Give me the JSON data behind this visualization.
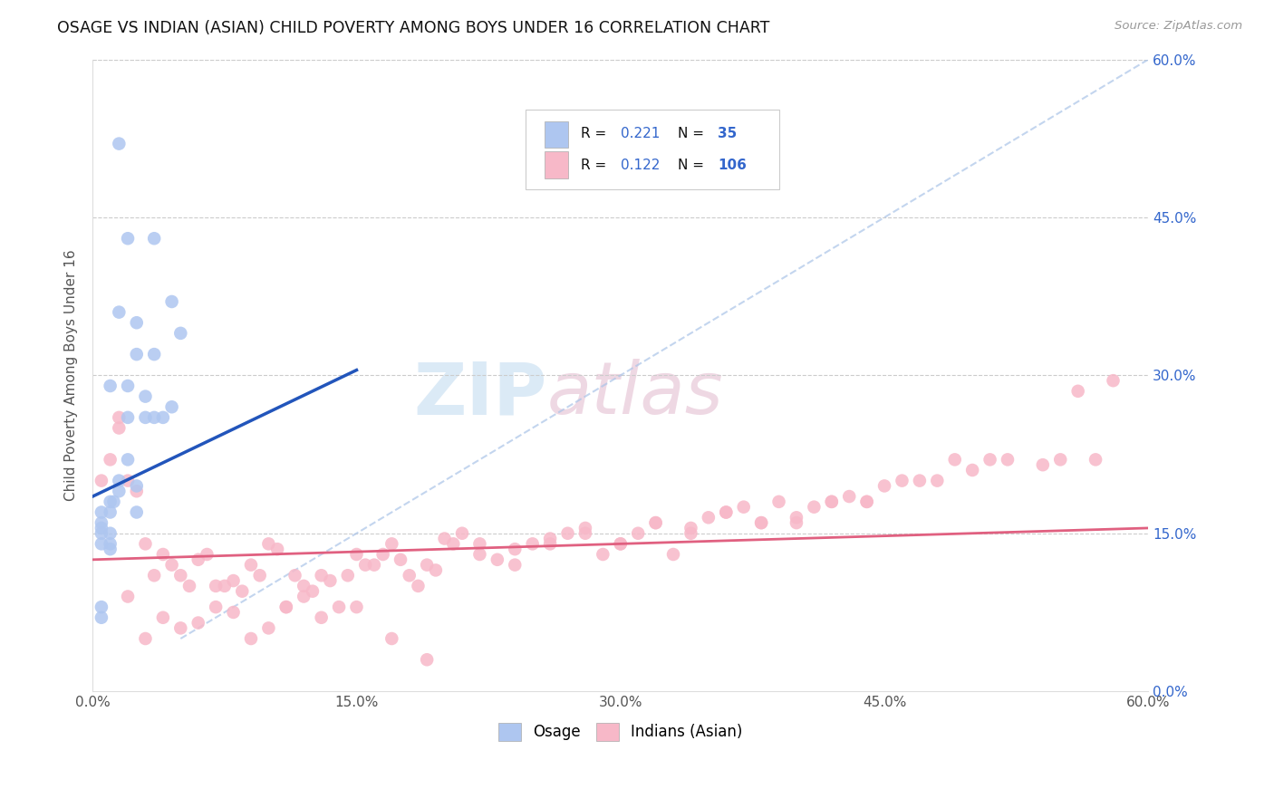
{
  "title": "OSAGE VS INDIAN (ASIAN) CHILD POVERTY AMONG BOYS UNDER 16 CORRELATION CHART",
  "source": "Source: ZipAtlas.com",
  "ylabel": "Child Poverty Among Boys Under 16",
  "tick_labels": [
    "0.0%",
    "15.0%",
    "30.0%",
    "45.0%",
    "60.0%"
  ],
  "tick_values": [
    0,
    15,
    30,
    45,
    60
  ],
  "xlim": [
    0,
    60
  ],
  "ylim": [
    0,
    60
  ],
  "osage_R": 0.221,
  "osage_N": 35,
  "indian_R": 0.122,
  "indian_N": 106,
  "osage_color": "#aec6f0",
  "indian_color": "#f7b8c8",
  "osage_line_color": "#2255bb",
  "indian_line_color": "#e06080",
  "diag_color": "#aac4e8",
  "watermark_zip": "ZIP",
  "watermark_atlas": "atlas",
  "legend_osage": "Osage",
  "legend_indian": "Indians (Asian)",
  "osage_x": [
    1.5,
    2.0,
    3.5,
    1.5,
    2.5,
    2.5,
    3.5,
    2.0,
    3.0,
    3.0,
    1.0,
    2.0,
    1.5,
    1.5,
    1.0,
    1.0,
    0.5,
    0.5,
    0.5,
    1.0,
    1.0,
    1.0,
    0.5,
    3.5,
    4.5,
    2.5,
    2.5,
    0.5,
    0.5,
    0.5,
    1.2,
    4.5,
    5.0,
    2.0,
    4.0
  ],
  "osage_y": [
    52.0,
    43.0,
    43.0,
    36.0,
    35.0,
    32.0,
    32.0,
    29.0,
    28.0,
    26.0,
    29.0,
    22.0,
    20.0,
    19.0,
    18.0,
    17.0,
    16.0,
    15.5,
    15.0,
    15.0,
    14.0,
    13.5,
    8.0,
    26.0,
    27.0,
    19.5,
    17.0,
    17.0,
    14.0,
    7.0,
    18.0,
    37.0,
    34.0,
    26.0,
    26.0
  ],
  "indian_x": [
    1.0,
    1.5,
    2.0,
    3.0,
    4.0,
    5.0,
    6.0,
    7.0,
    8.0,
    9.0,
    10.0,
    11.0,
    12.0,
    13.0,
    14.0,
    15.0,
    16.0,
    17.0,
    18.0,
    19.0,
    20.0,
    21.0,
    22.0,
    23.0,
    24.0,
    25.0,
    26.0,
    27.0,
    28.0,
    29.0,
    30.0,
    31.0,
    32.0,
    33.0,
    34.0,
    35.0,
    36.0,
    37.0,
    38.0,
    39.0,
    40.0,
    41.0,
    42.0,
    43.0,
    44.0,
    45.0,
    46.0,
    47.0,
    48.0,
    49.0,
    50.0,
    51.0,
    52.0,
    54.0,
    55.0,
    56.0,
    57.0,
    58.0,
    0.5,
    1.5,
    2.5,
    3.5,
    4.5,
    5.5,
    6.5,
    7.5,
    8.5,
    9.5,
    10.5,
    11.5,
    12.5,
    13.5,
    14.5,
    15.5,
    16.5,
    17.5,
    18.5,
    19.5,
    20.5,
    22.0,
    24.0,
    26.0,
    28.0,
    30.0,
    32.0,
    34.0,
    36.0,
    38.0,
    40.0,
    42.0,
    44.0,
    3.0,
    5.0,
    7.0,
    9.0,
    11.0,
    13.0,
    15.0,
    17.0,
    19.0,
    2.0,
    4.0,
    6.0,
    8.0,
    10.0,
    12.0
  ],
  "indian_y": [
    22.0,
    25.0,
    20.0,
    14.0,
    13.0,
    11.0,
    12.5,
    10.0,
    10.5,
    12.0,
    14.0,
    8.0,
    10.0,
    11.0,
    8.0,
    13.0,
    12.0,
    14.0,
    11.0,
    12.0,
    14.5,
    15.0,
    13.0,
    12.5,
    13.5,
    14.0,
    14.0,
    15.0,
    15.5,
    13.0,
    14.0,
    15.0,
    16.0,
    13.0,
    15.5,
    16.5,
    17.0,
    17.5,
    16.0,
    18.0,
    16.5,
    17.5,
    18.0,
    18.5,
    18.0,
    19.5,
    20.0,
    20.0,
    20.0,
    22.0,
    21.0,
    22.0,
    22.0,
    21.5,
    22.0,
    28.5,
    22.0,
    29.5,
    20.0,
    26.0,
    19.0,
    11.0,
    12.0,
    10.0,
    13.0,
    10.0,
    9.5,
    11.0,
    13.5,
    11.0,
    9.5,
    10.5,
    11.0,
    12.0,
    13.0,
    12.5,
    10.0,
    11.5,
    14.0,
    14.0,
    12.0,
    14.5,
    15.0,
    14.0,
    16.0,
    15.0,
    17.0,
    16.0,
    16.0,
    18.0,
    18.0,
    5.0,
    6.0,
    8.0,
    5.0,
    8.0,
    7.0,
    8.0,
    5.0,
    3.0,
    9.0,
    7.0,
    6.5,
    7.5,
    6.0,
    9.0
  ],
  "osage_line_x0": 0.0,
  "osage_line_x1": 15.0,
  "osage_line_y0": 18.5,
  "osage_line_y1": 30.5,
  "indian_line_x0": 0.0,
  "indian_line_x1": 60.0,
  "indian_line_y0": 12.5,
  "indian_line_y1": 15.5,
  "diag_x0": 5.0,
  "diag_x1": 60.0,
  "diag_y0": 5.0,
  "diag_y1": 60.0
}
